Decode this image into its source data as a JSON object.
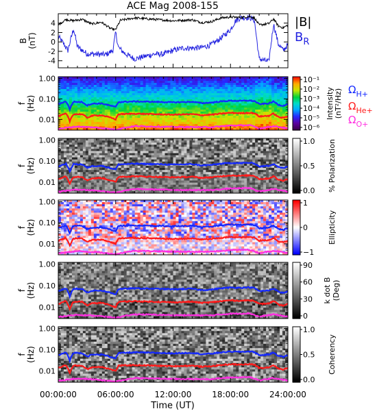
{
  "chart_data": {
    "title": "ACE Mag 2008-155",
    "x_ticks": [
      "00:00:00",
      "06:00:00",
      "12:00:00",
      "18:00:00",
      "24:00:00"
    ],
    "x_range_hours": [
      0,
      24
    ],
    "xlabel": "Time (UT)",
    "colors": {
      "btotal": "#000000",
      "br": "#2323e0",
      "h_plus": "#1428ff",
      "he_plus": "#ff1a1a",
      "o_plus": "#ff2ee0"
    },
    "panels": [
      {
        "id": "field",
        "type": "line",
        "ylabel_main": "B",
        "ylabel_unit": "(nT)",
        "ylim": [
          -5.5,
          6
        ],
        "y_ticks": [
          "4",
          "2",
          "0",
          "-2",
          "-4"
        ],
        "y_tick_values": [
          4,
          2,
          0,
          -2,
          -4
        ],
        "legend_btotal": "|B|",
        "legend_br_main": "B",
        "legend_br_sub": "R",
        "series_btotal": [
          [
            0,
            3.6
          ],
          [
            0.8,
            4.8
          ],
          [
            1.5,
            4.5
          ],
          [
            2.5,
            4.8
          ],
          [
            3.5,
            3.8
          ],
          [
            4.5,
            4.2
          ],
          [
            5.5,
            2.8
          ],
          [
            6,
            2.6
          ],
          [
            6.5,
            4.6
          ],
          [
            8,
            5.1
          ],
          [
            10,
            4.8
          ],
          [
            12,
            4.5
          ],
          [
            14,
            4.7
          ],
          [
            15,
            4.1
          ],
          [
            16,
            4.3
          ],
          [
            17,
            5.1
          ],
          [
            18,
            5.3
          ],
          [
            19,
            5.2
          ],
          [
            20,
            5.4
          ],
          [
            20.5,
            5.1
          ],
          [
            21,
            3.6
          ],
          [
            22,
            3.9
          ],
          [
            22.5,
            4.9
          ],
          [
            23,
            3.4
          ],
          [
            23.5,
            3.0
          ],
          [
            24,
            3.6
          ]
        ],
        "series_br": [
          [
            0,
            1.2
          ],
          [
            0.6,
            -0.5
          ],
          [
            1,
            -1.8
          ],
          [
            1.6,
            2.8
          ],
          [
            2,
            -1.0
          ],
          [
            3,
            -2.5
          ],
          [
            4,
            -2.6
          ],
          [
            5,
            -2.7
          ],
          [
            5.7,
            -1.8
          ],
          [
            6,
            2.0
          ],
          [
            6.3,
            -1.2
          ],
          [
            7,
            -2.5
          ],
          [
            8,
            -3.6
          ],
          [
            9,
            -3.1
          ],
          [
            10,
            -2.6
          ],
          [
            11,
            -2.6
          ],
          [
            12,
            -1.8
          ],
          [
            13,
            -1.3
          ],
          [
            14,
            -1.3
          ],
          [
            15,
            -1.2
          ],
          [
            16,
            -0.6
          ],
          [
            17,
            0.8
          ],
          [
            18,
            2.6
          ],
          [
            18.5,
            4.4
          ],
          [
            19,
            5.1
          ],
          [
            20,
            5.2
          ],
          [
            20.5,
            4.6
          ],
          [
            21,
            -3.6
          ],
          [
            22,
            -4.2
          ],
          [
            22.5,
            3.8
          ],
          [
            23,
            -0.4
          ],
          [
            23.5,
            -1.8
          ],
          [
            24,
            -0.6
          ]
        ]
      },
      {
        "id": "intensity",
        "type": "heatmap",
        "ylabel_main": "f",
        "ylabel_unit": "(Hz)",
        "ylim_hz": [
          0.003,
          1.2
        ],
        "y_ticks": [
          "1.00",
          "0.10",
          "0.01"
        ],
        "colorbar_label_main": "Intensity",
        "colorbar_label_unit": "(nT²/Hz)",
        "colorbar_ticks": [
          "10⁻¹",
          "10⁻²",
          "10⁻³",
          "10⁻⁴",
          "10⁻⁵",
          "10⁻⁶"
        ],
        "colorbar_tick_exponents": [
          -1,
          -2,
          -3,
          -4,
          -5,
          -6
        ],
        "colormap": "rainbow",
        "gyro_labels": [
          {
            "main": "Ω",
            "sub": "H+"
          },
          {
            "main": "Ω",
            "sub": "He+"
          },
          {
            "main": "Ω",
            "sub": "O+"
          }
        ]
      },
      {
        "id": "polarization",
        "type": "heatmap",
        "ylabel_main": "f",
        "ylabel_unit": "(Hz)",
        "y_ticks": [
          "1.00",
          "0.10",
          "0.01"
        ],
        "colorbar_label_main": "% Polarization",
        "colorbar_ticks": [
          "1.0",
          "0.5",
          "0.0"
        ],
        "colorbar_range": [
          0,
          1
        ],
        "colormap": "gray"
      },
      {
        "id": "ellipticity",
        "type": "heatmap",
        "ylabel_main": "f",
        "ylabel_unit": "(Hz)",
        "y_ticks": [
          "1.00",
          "0.10",
          "0.01"
        ],
        "colorbar_label_main": "Ellipticity",
        "colorbar_ticks": [
          "1",
          "0",
          "−1"
        ],
        "colorbar_range": [
          -1,
          1
        ],
        "colormap": "bwr"
      },
      {
        "id": "kdotb",
        "type": "heatmap",
        "ylabel_main": "f",
        "ylabel_unit": "(Hz)",
        "y_ticks": [
          "1.00",
          "0.10",
          "0.01"
        ],
        "colorbar_label_main": "k dot B",
        "colorbar_label_unit": "(Deg)",
        "colorbar_ticks": [
          "90",
          "60",
          "30",
          "0"
        ],
        "colorbar_range": [
          0,
          90
        ],
        "colormap": "gray"
      },
      {
        "id": "coherency",
        "type": "heatmap",
        "ylabel_main": "f",
        "ylabel_unit": "(Hz)",
        "y_ticks": [
          "1.00",
          "0.10",
          "0.01"
        ],
        "colorbar_label_main": "Coherency",
        "colorbar_ticks": [
          "1.0",
          "0.5",
          "0.0"
        ],
        "colorbar_range": [
          0,
          1
        ],
        "colormap": "gray"
      }
    ],
    "gyrofrequency_lines": {
      "h_plus_hz": [
        [
          0,
          0.055
        ],
        [
          0.8,
          0.075
        ],
        [
          1.2,
          0.03
        ],
        [
          1.6,
          0.072
        ],
        [
          2.5,
          0.07
        ],
        [
          3,
          0.048
        ],
        [
          3.5,
          0.058
        ],
        [
          4.5,
          0.06
        ],
        [
          5.5,
          0.046
        ],
        [
          6,
          0.04
        ],
        [
          6.3,
          0.07
        ],
        [
          8,
          0.075
        ],
        [
          10,
          0.072
        ],
        [
          12,
          0.068
        ],
        [
          14,
          0.072
        ],
        [
          15,
          0.062
        ],
        [
          16,
          0.066
        ],
        [
          17,
          0.075
        ],
        [
          18,
          0.082
        ],
        [
          19,
          0.08
        ],
        [
          20,
          0.083
        ],
        [
          20.5,
          0.078
        ],
        [
          21,
          0.055
        ],
        [
          22,
          0.06
        ],
        [
          22.5,
          0.074
        ],
        [
          23,
          0.052
        ],
        [
          23.5,
          0.046
        ],
        [
          24,
          0.055
        ]
      ],
      "he_plus_hz": [
        [
          0,
          0.014
        ],
        [
          0.8,
          0.019
        ],
        [
          1.2,
          0.008
        ],
        [
          1.6,
          0.018
        ],
        [
          2.5,
          0.018
        ],
        [
          3,
          0.012
        ],
        [
          3.5,
          0.015
        ],
        [
          4.5,
          0.016
        ],
        [
          5.5,
          0.012
        ],
        [
          6,
          0.01
        ],
        [
          6.3,
          0.018
        ],
        [
          8,
          0.019
        ],
        [
          10,
          0.018
        ],
        [
          12,
          0.017
        ],
        [
          14,
          0.018
        ],
        [
          15,
          0.016
        ],
        [
          16,
          0.017
        ],
        [
          17,
          0.019
        ],
        [
          18,
          0.021
        ],
        [
          19,
          0.02
        ],
        [
          20,
          0.021
        ],
        [
          20.5,
          0.02
        ],
        [
          21,
          0.014
        ],
        [
          22,
          0.015
        ],
        [
          22.5,
          0.019
        ],
        [
          23,
          0.013
        ],
        [
          23.5,
          0.012
        ],
        [
          24,
          0.014
        ]
      ],
      "o_plus_hz": [
        [
          0,
          0.0035
        ],
        [
          2,
          0.0045
        ],
        [
          4,
          0.004
        ],
        [
          6,
          0.0032
        ],
        [
          8,
          0.0047
        ],
        [
          12,
          0.0043
        ],
        [
          16,
          0.0042
        ],
        [
          18,
          0.005
        ],
        [
          20,
          0.0052
        ],
        [
          21,
          0.0036
        ],
        [
          22.5,
          0.0047
        ],
        [
          24,
          0.0036
        ]
      ]
    }
  }
}
